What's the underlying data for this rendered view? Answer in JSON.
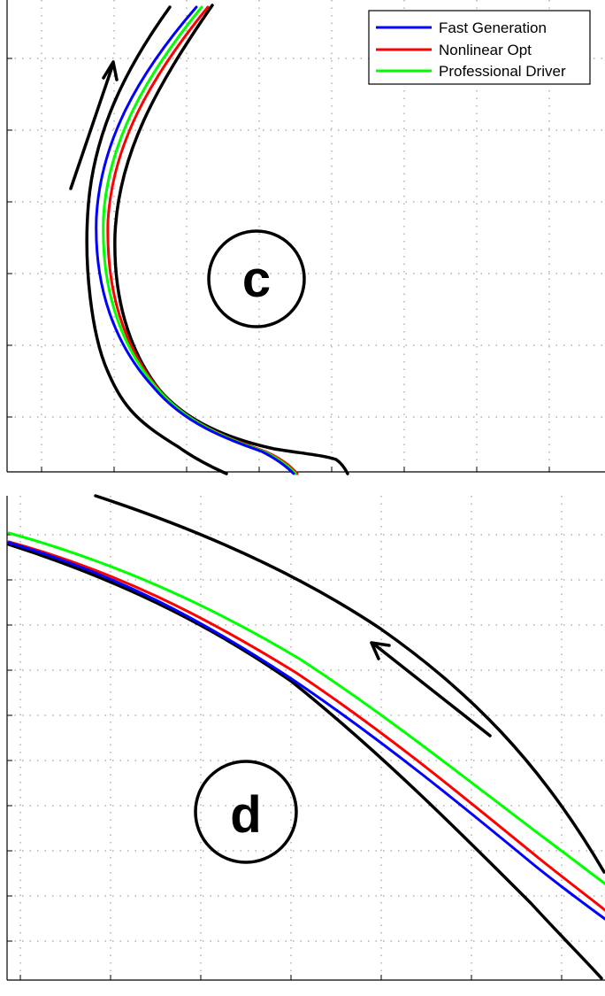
{
  "chart_data": [
    {
      "type": "line",
      "panel_label": "c",
      "title": "",
      "xlabel": "",
      "ylabel": "",
      "legend": {
        "placement": "top-right",
        "entries": [
          {
            "name": "Fast Generation",
            "color": "#0000ff"
          },
          {
            "name": "Nonlinear Opt",
            "color": "#ff0000"
          },
          {
            "name": "Professional Driver",
            "color": "#00ff00"
          }
        ]
      },
      "grid": true,
      "series": [
        {
          "name": "Fast Generation",
          "color": "#0000ff"
        },
        {
          "name": "Nonlinear Opt",
          "color": "#ff0000"
        },
        {
          "name": "Professional Driver",
          "color": "#00ff00"
        }
      ],
      "boundaries": [
        "outer-edge",
        "inner-edge"
      ],
      "direction_arrow": "up"
    },
    {
      "type": "line",
      "panel_label": "d",
      "title": "",
      "xlabel": "",
      "ylabel": "",
      "grid": true,
      "series": [
        {
          "name": "Fast Generation",
          "color": "#0000ff"
        },
        {
          "name": "Nonlinear Opt",
          "color": "#ff0000"
        },
        {
          "name": "Professional Driver",
          "color": "#00ff00"
        }
      ],
      "boundaries": [
        "outer-edge",
        "inner-edge"
      ],
      "direction_arrow": "up-left"
    }
  ]
}
